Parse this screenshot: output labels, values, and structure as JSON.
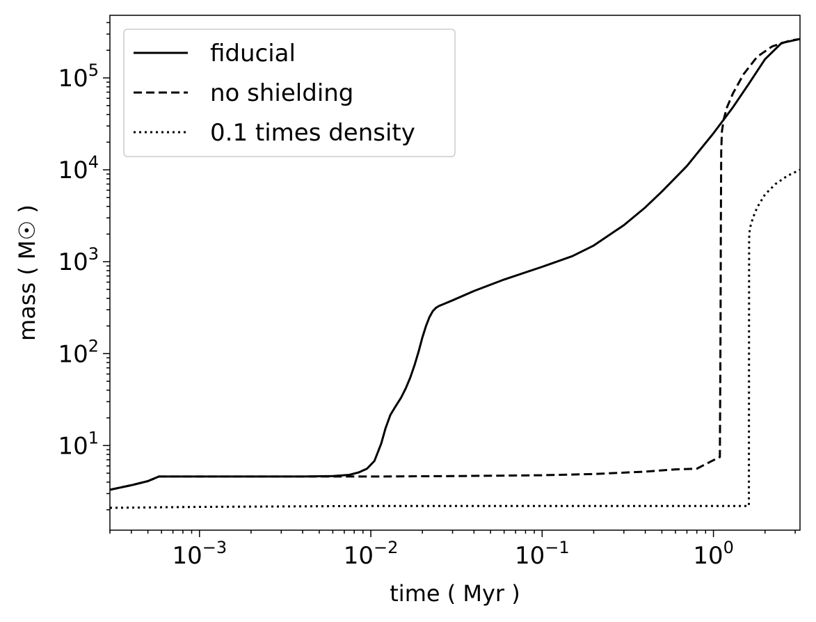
{
  "chart_data": {
    "type": "line",
    "xlabel": "time ( Myr )",
    "ylabel": "mass ( M☉ )",
    "xscale": "log",
    "yscale": "log",
    "xlim": [
      0.0003,
      3.2
    ],
    "ylim": [
      1.2,
      480000
    ],
    "grid": false,
    "legend_position": "top-left",
    "x_ticks": [
      {
        "value": 0.001,
        "base": "10",
        "exp": "−3"
      },
      {
        "value": 0.01,
        "base": "10",
        "exp": "−2"
      },
      {
        "value": 0.1,
        "base": "10",
        "exp": "−1"
      },
      {
        "value": 1,
        "base": "10",
        "exp": "0"
      }
    ],
    "y_ticks": [
      {
        "value": 10,
        "base": "10",
        "exp": "1"
      },
      {
        "value": 100,
        "base": "10",
        "exp": "2"
      },
      {
        "value": 1000,
        "base": "10",
        "exp": "3"
      },
      {
        "value": 10000,
        "base": "10",
        "exp": "4"
      },
      {
        "value": 100000,
        "base": "10",
        "exp": "5"
      }
    ],
    "series": [
      {
        "name": "fiducial",
        "dash": "solid",
        "color": "#000000",
        "x": [
          0.0003,
          0.0004,
          0.0005,
          0.00058,
          0.0007,
          0.001,
          0.002,
          0.004,
          0.006,
          0.0075,
          0.0085,
          0.0095,
          0.0105,
          0.0115,
          0.0122,
          0.013,
          0.014,
          0.015,
          0.016,
          0.017,
          0.018,
          0.019,
          0.02,
          0.021,
          0.022,
          0.023,
          0.024,
          0.025,
          0.027,
          0.03,
          0.04,
          0.06,
          0.1,
          0.15,
          0.2,
          0.3,
          0.4,
          0.5,
          0.7,
          1.0,
          1.3,
          1.6,
          2.0,
          2.5,
          3.2
        ],
        "y": [
          3.3,
          3.7,
          4.1,
          4.6,
          4.6,
          4.6,
          4.6,
          4.6,
          4.65,
          4.8,
          5.1,
          5.6,
          6.8,
          10.5,
          15.5,
          21.5,
          27,
          33,
          42,
          55,
          75,
          105,
          150,
          200,
          250,
          290,
          315,
          330,
          350,
          380,
          480,
          640,
          880,
          1150,
          1500,
          2500,
          3900,
          5800,
          11000,
          25000,
          48000,
          85000,
          160000,
          240000,
          265000
        ]
      },
      {
        "name": "no shielding",
        "dash": "dashed",
        "color": "#000000",
        "x": [
          0.0003,
          0.0004,
          0.0005,
          0.00058,
          0.0007,
          0.001,
          0.003,
          0.01,
          0.03,
          0.1,
          0.2,
          0.4,
          0.6,
          0.8,
          0.95,
          1.09,
          1.1,
          1.105,
          1.11,
          1.12,
          1.15,
          1.2,
          1.3,
          1.5,
          1.8,
          2.2,
          2.8,
          3.2
        ],
        "y": [
          3.3,
          3.7,
          4.1,
          4.6,
          4.6,
          4.6,
          4.6,
          4.6,
          4.65,
          4.75,
          4.9,
          5.2,
          5.5,
          5.6,
          6.6,
          7.5,
          200,
          3000,
          16000,
          26000,
          36000,
          48000,
          68000,
          110000,
          170000,
          220000,
          255000,
          265000
        ]
      },
      {
        "name": "0.1 times density",
        "dash": "dotted",
        "color": "#000000",
        "x": [
          0.0003,
          0.001,
          0.01,
          0.1,
          1.0,
          1.5,
          1.61,
          1.615,
          1.63,
          1.7,
          1.8,
          2.0,
          2.3,
          2.7,
          3.2
        ],
        "y": [
          2.1,
          2.15,
          2.2,
          2.2,
          2.2,
          2.2,
          2.2,
          1800,
          2300,
          3000,
          3900,
          5400,
          7000,
          8600,
          10000
        ]
      }
    ]
  }
}
